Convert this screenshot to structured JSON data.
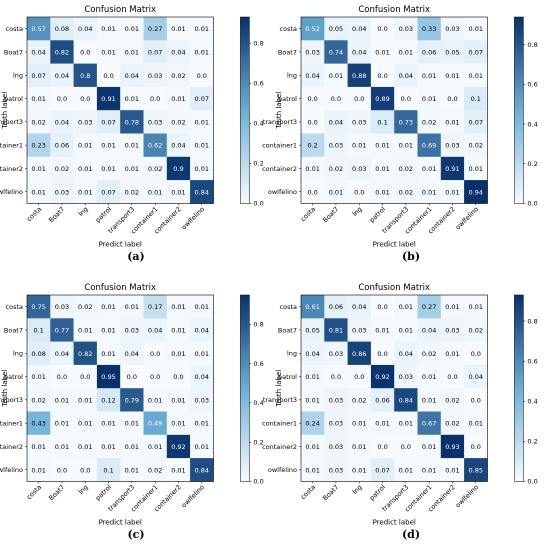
{
  "colormap": {
    "low": "#f7fbff",
    "mid": "#6baed6",
    "high": "#08306b",
    "text_light": "#ffffff",
    "text_dark": "#000000"
  },
  "chart_data": [
    {
      "type": "heatmap",
      "caption": "(a)",
      "title": "Confusion Matrix",
      "xlabel": "Predict label",
      "ylabel": "Truth label",
      "labels": [
        "costa",
        "Boat7",
        "lng",
        "patrol",
        "transport3",
        "container1",
        "container2",
        "owlfelino"
      ],
      "colorbar_ticks": [
        "0.0",
        "0.2",
        "0.4",
        "0.6",
        "0.8"
      ],
      "vmax": 0.93,
      "matrix": [
        [
          "0.57",
          "0.08",
          "0.04",
          "0.01",
          "0.01",
          "0.27",
          "0.01",
          "0.01"
        ],
        [
          "0.04",
          "0.82",
          "0.0",
          "0.01",
          "0.01",
          "0.07",
          "0.04",
          "0.01"
        ],
        [
          "0.07",
          "0.04",
          "0.8",
          "0.0",
          "0.04",
          "0.03",
          "0.02",
          "0.0"
        ],
        [
          "0.01",
          "0.0",
          "0.0",
          "0.91",
          "0.01",
          "0.0",
          "0.01",
          "0.07"
        ],
        [
          "0.02",
          "0.04",
          "0.03",
          "0.07",
          "0.78",
          "0.03",
          "0.02",
          "0.01"
        ],
        [
          "0.23",
          "0.06",
          "0.01",
          "0.01",
          "0.01",
          "0.62",
          "0.04",
          "0.01"
        ],
        [
          "0.01",
          "0.02",
          "0.01",
          "0.01",
          "0.01",
          "0.02",
          "0.9",
          "0.01"
        ],
        [
          "0.01",
          "0.03",
          "0.01",
          "0.07",
          "0.02",
          "0.01",
          "0.01",
          "0.84"
        ]
      ]
    },
    {
      "type": "heatmap",
      "caption": "(b)",
      "title": "Confusion Matrix",
      "xlabel": "Predict label",
      "ylabel": "Truth label",
      "labels": [
        "costa",
        "Boat7",
        "lng",
        "patrol",
        "transport3",
        "container1",
        "container2",
        "owlfelino"
      ],
      "colorbar_ticks": [
        "0.0",
        "0.2",
        "0.4",
        "0.6",
        "0.8"
      ],
      "vmax": 0.94,
      "matrix": [
        [
          "0.52",
          "0.05",
          "0.04",
          "0.0",
          "0.03",
          "0.33",
          "0.03",
          "0.01"
        ],
        [
          "0.03",
          "0.74",
          "0.04",
          "0.01",
          "0.01",
          "0.06",
          "0.05",
          "0.07"
        ],
        [
          "0.04",
          "0.01",
          "0.88",
          "0.0",
          "0.04",
          "0.01",
          "0.01",
          "0.01"
        ],
        [
          "0.0",
          "0.0",
          "0.0",
          "0.89",
          "0.0",
          "0.01",
          "0.0",
          "0.1"
        ],
        [
          "0.0",
          "0.04",
          "0.03",
          "0.1",
          "0.73",
          "0.02",
          "0.01",
          "0.07"
        ],
        [
          "0.2",
          "0.03",
          "0.01",
          "0.01",
          "0.01",
          "0.69",
          "0.03",
          "0.02"
        ],
        [
          "0.01",
          "0.02",
          "0.03",
          "0.01",
          "0.02",
          "0.01",
          "0.91",
          "0.01"
        ],
        [
          "0.0",
          "0.01",
          "0.0",
          "0.01",
          "0.02",
          "0.01",
          "0.01",
          "0.94"
        ]
      ]
    },
    {
      "type": "heatmap",
      "caption": "(c)",
      "title": "Confusion Matrix",
      "xlabel": "Predict label",
      "ylabel": "Truth label",
      "labels": [
        "costa",
        "Boat7",
        "lng",
        "patrol",
        "transport3",
        "container1",
        "container2",
        "owlfelino"
      ],
      "colorbar_ticks": [
        "0.0",
        "0.2",
        "0.4",
        "0.6",
        "0.8"
      ],
      "vmax": 0.95,
      "matrix": [
        [
          "0.75",
          "0.03",
          "0.02",
          "0.01",
          "0.01",
          "0.17",
          "0.01",
          "0.01"
        ],
        [
          "0.1",
          "0.77",
          "0.01",
          "0.01",
          "0.03",
          "0.04",
          "0.01",
          "0.04"
        ],
        [
          "0.08",
          "0.04",
          "0.82",
          "0.01",
          "0.04",
          "0.0",
          "0.01",
          "0.01"
        ],
        [
          "0.01",
          "0.0",
          "0.0",
          "0.95",
          "0.0",
          "0.0",
          "0.0",
          "0.04"
        ],
        [
          "0.02",
          "0.01",
          "0.01",
          "0.12",
          "0.79",
          "0.01",
          "0.01",
          "0.03"
        ],
        [
          "0.43",
          "0.01",
          "0.01",
          "0.01",
          "0.01",
          "0.49",
          "0.01",
          "0.01"
        ],
        [
          "0.01",
          "0.01",
          "0.01",
          "0.01",
          "0.01",
          "0.01",
          "0.92",
          "0.01"
        ],
        [
          "0.01",
          "0.0",
          "0.0",
          "0.1",
          "0.01",
          "0.02",
          "0.01",
          "0.84"
        ]
      ]
    },
    {
      "type": "heatmap",
      "caption": "(d)",
      "title": "Confusion Matrix",
      "xlabel": "Predict label",
      "ylabel": "Truth label",
      "labels": [
        "costa",
        "Boat7",
        "lng",
        "patrol",
        "transport3",
        "container1",
        "container2",
        "owlfelino"
      ],
      "colorbar_ticks": [
        "0.0",
        "0.2",
        "0.4",
        "0.6",
        "0.8"
      ],
      "vmax": 0.93,
      "matrix": [
        [
          "0.61",
          "0.06",
          "0.04",
          "0.0",
          "0.01",
          "0.27",
          "0.01",
          "0.01"
        ],
        [
          "0.05",
          "0.81",
          "0.03",
          "0.01",
          "0.01",
          "0.04",
          "0.03",
          "0.02"
        ],
        [
          "0.04",
          "0.03",
          "0.86",
          "0.0",
          "0.04",
          "0.02",
          "0.01",
          "0.0"
        ],
        [
          "0.01",
          "0.0",
          "0.0",
          "0.92",
          "0.03",
          "0.01",
          "0.0",
          "0.04"
        ],
        [
          "0.01",
          "0.03",
          "0.02",
          "0.06",
          "0.84",
          "0.01",
          "0.02",
          "0.0"
        ],
        [
          "0.24",
          "0.03",
          "0.01",
          "0.01",
          "0.01",
          "0.67",
          "0.02",
          "0.01"
        ],
        [
          "0.01",
          "0.03",
          "0.01",
          "0.0",
          "0.0",
          "0.01",
          "0.93",
          "0.0"
        ],
        [
          "0.01",
          "0.03",
          "0.01",
          "0.07",
          "0.01",
          "0.01",
          "0.01",
          "0.85"
        ]
      ]
    }
  ]
}
